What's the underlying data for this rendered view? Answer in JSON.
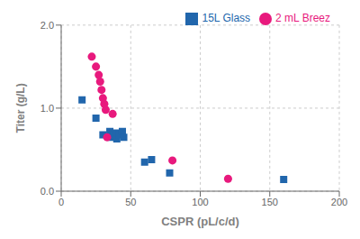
{
  "chart_data": {
    "type": "scatter",
    "xlabel": "CSPR (pL/c/d)",
    "ylabel": "Titer (g/L)",
    "xlim": [
      0,
      200
    ],
    "ylim": [
      0.0,
      2.0
    ],
    "xticks": [
      0,
      50,
      100,
      150,
      200
    ],
    "yticks": [
      {
        "value": 0.0,
        "label": "0.0"
      },
      {
        "value": 1.0,
        "label": "1.0"
      },
      {
        "value": 2.0,
        "label": "2.0"
      }
    ],
    "grid": true,
    "legend": "upper right",
    "series": [
      {
        "name": "15L Glass",
        "color": "#2166ac",
        "marker": "square",
        "x": [
          15,
          25,
          30,
          35,
          36,
          38,
          40,
          40,
          42,
          44,
          45,
          60,
          65,
          78,
          160
        ],
        "values": [
          1.1,
          0.88,
          0.68,
          0.72,
          0.65,
          0.68,
          0.7,
          0.63,
          0.68,
          0.72,
          0.65,
          0.35,
          0.38,
          0.22,
          0.14
        ]
      },
      {
        "name": "2 mL Breez",
        "color": "#e8197d",
        "marker": "circle",
        "x": [
          22,
          25,
          27,
          28,
          29,
          30,
          31,
          32,
          33,
          37,
          80,
          120
        ],
        "values": [
          1.62,
          1.5,
          1.4,
          1.32,
          1.22,
          1.12,
          1.05,
          0.98,
          0.65,
          0.93,
          0.37,
          0.15
        ]
      }
    ]
  }
}
